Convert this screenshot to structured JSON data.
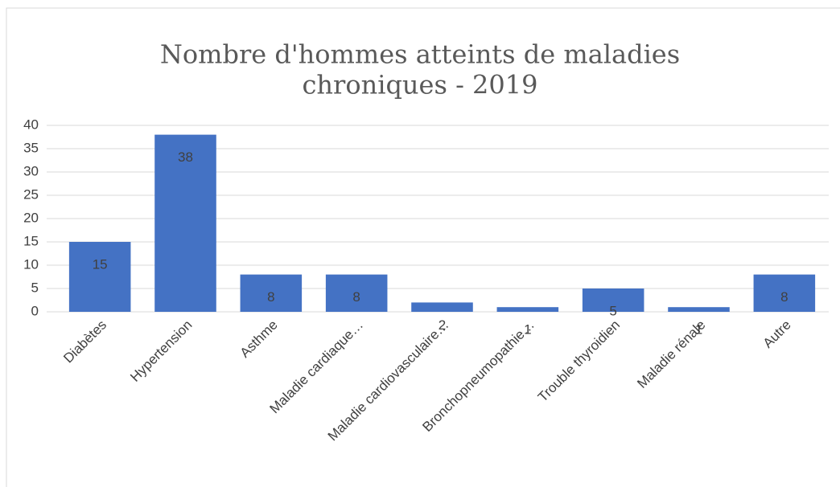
{
  "chart_data": {
    "type": "bar",
    "title": "Nombre d'hommes atteints de maladies",
    "subtitle": "chroniques - 2019",
    "categories": [
      "Diabètes",
      "Hypertension",
      "Asthme",
      "Maladie cardiaque…",
      "Maladie cardiovasculaire…",
      "Bronchopneumopathie…",
      "Trouble thyroidien",
      "Maladie rénale",
      "Autre"
    ],
    "values": [
      15,
      38,
      8,
      8,
      2,
      1,
      5,
      1,
      8
    ],
    "color": "#4472c4",
    "ylim": [
      0,
      40
    ],
    "yticks": [
      0,
      5,
      10,
      15,
      20,
      25,
      30,
      35,
      40
    ],
    "grid": true
  }
}
